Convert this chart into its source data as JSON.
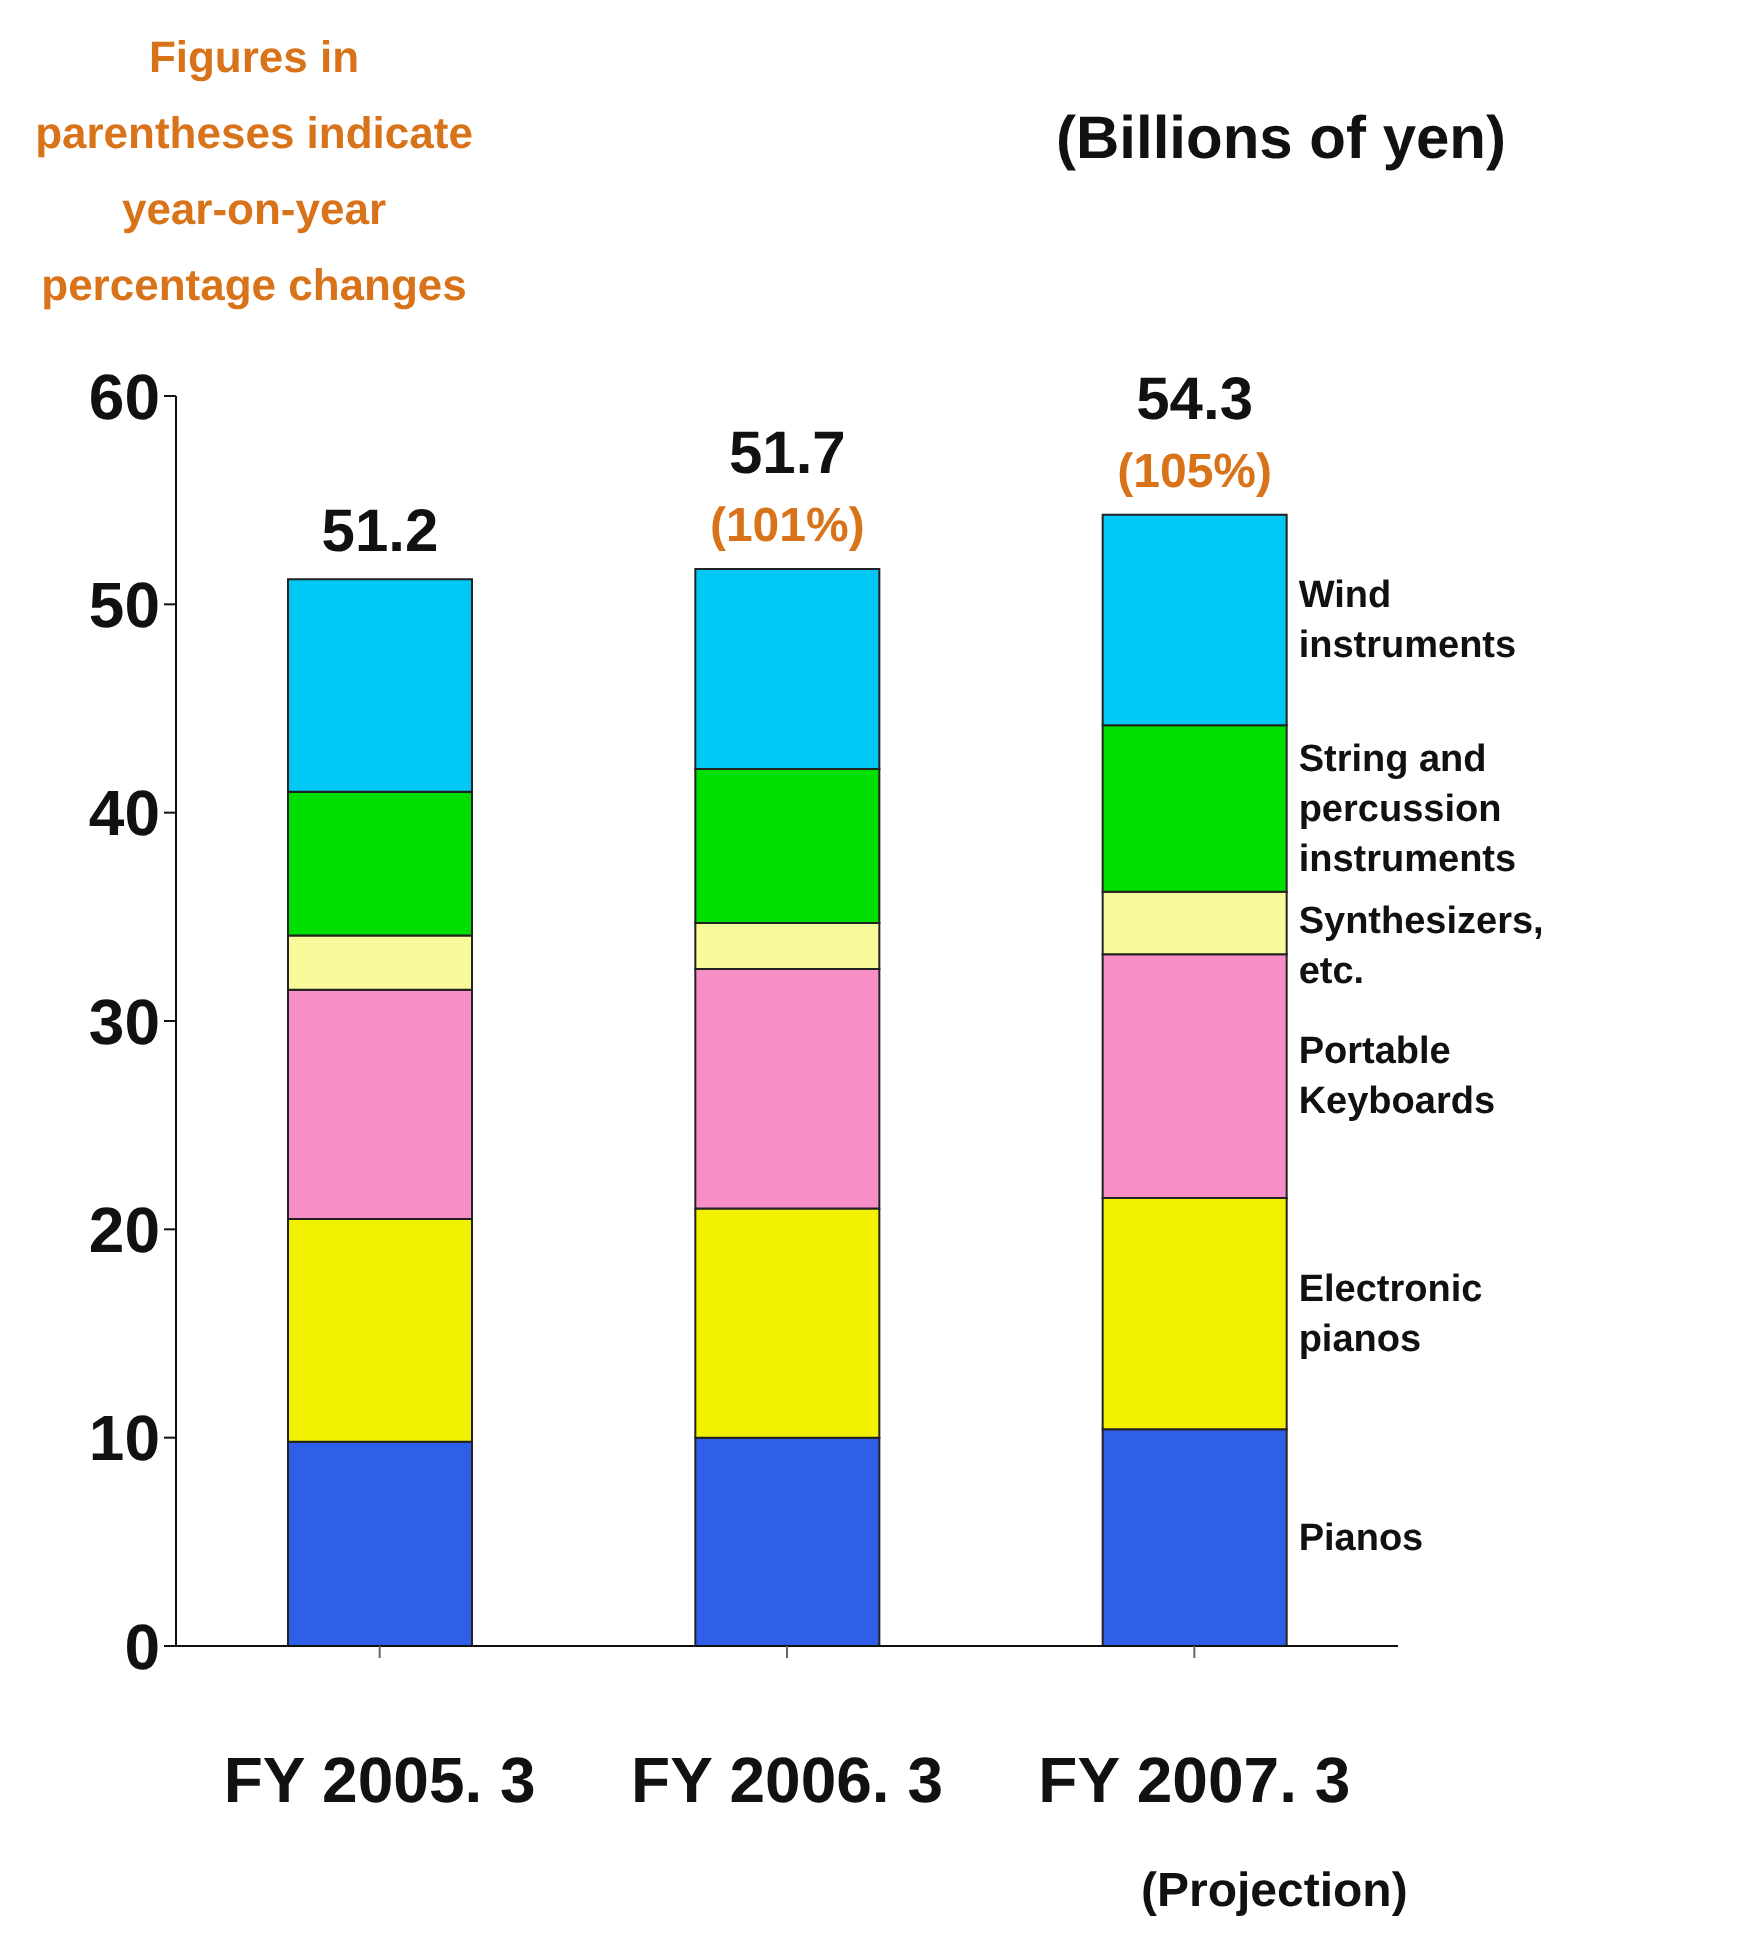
{
  "chart_data": {
    "type": "bar",
    "stacked": true,
    "ylabel": "(Billions of yen)",
    "categories": [
      "FY 2005. 3",
      "FY 2006. 3",
      "FY 2007. 3 (Projection)"
    ],
    "series": [
      {
        "name": "Pianos",
        "color": "#2f5fe8",
        "values": [
          9.8,
          10.0,
          10.4
        ]
      },
      {
        "name": "Electronic pianos",
        "color": "#f2f200",
        "values": [
          10.7,
          11.0,
          11.1
        ]
      },
      {
        "name": "Portable Keyboards",
        "color": "#f78fc6",
        "values": [
          11.0,
          11.5,
          11.7
        ]
      },
      {
        "name": "Synthesizers, etc.",
        "color": "#fafa9a",
        "values": [
          2.6,
          2.2,
          3.0
        ]
      },
      {
        "name": "String and percussion instruments",
        "color": "#00e000",
        "values": [
          6.9,
          7.4,
          8.0
        ]
      },
      {
        "name": "Wind instruments",
        "color": "#00c8f5",
        "values": [
          10.2,
          9.6,
          10.1
        ]
      }
    ],
    "totals": [
      "51.2",
      "51.7",
      "54.3"
    ],
    "annotations": [
      "Figures in parentheses indicate year-on-year percentage changes",
      {
        "text": "(101%)",
        "x": "FY 2006. 3",
        "y": 51.7
      },
      {
        "text": "(105%)",
        "x": "FY 2007. 3 (Projection)",
        "y": 54.3
      }
    ],
    "ylim": [
      0,
      60
    ],
    "yticks": [
      0,
      10,
      20,
      30,
      40,
      50,
      60
    ]
  }
}
